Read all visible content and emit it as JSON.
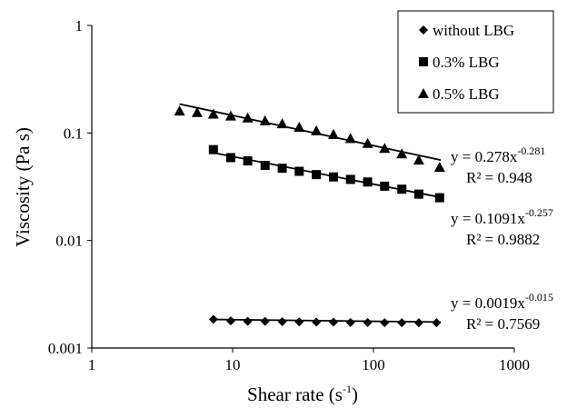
{
  "chart_data": {
    "type": "scatter",
    "xlabel": "Shear rate (s",
    "xlabel_sup": "-1",
    "xlabel_end": ")",
    "ylabel": "Viscosity (Pa s)",
    "x_scale": "log",
    "y_scale": "log",
    "xlim": [
      1,
      1000
    ],
    "ylim": [
      0.001,
      1
    ],
    "x_ticks": [
      {
        "value": 1,
        "label": "1"
      },
      {
        "value": 10,
        "label": "10"
      },
      {
        "value": 100,
        "label": "100"
      },
      {
        "value": 1000,
        "label": "1000"
      }
    ],
    "y_ticks": [
      {
        "value": 0.001,
        "label": "0.001"
      },
      {
        "value": 0.01,
        "label": "0.01"
      },
      {
        "value": 0.1,
        "label": "0.1"
      },
      {
        "value": 1,
        "label": "1"
      }
    ],
    "grid": false,
    "legend_position": "top-right",
    "series": [
      {
        "name": "without LBG",
        "marker": "diamond",
        "color": "#000000",
        "x": [
          7.3,
          9.7,
          12.8,
          17,
          22.5,
          29.7,
          39.3,
          52,
          68.7,
          90.9,
          120,
          159,
          210,
          280
        ],
        "y": [
          0.00185,
          0.00179,
          0.00177,
          0.00177,
          0.00176,
          0.00175,
          0.00174,
          0.00174,
          0.00173,
          0.00173,
          0.00172,
          0.00172,
          0.00172,
          0.00172
        ],
        "fit": {
          "a": 0.0019,
          "b": -0.015,
          "x_range": [
            7.3,
            300
          ],
          "eq_prefix": "y = 0.0019x",
          "eq_exp": "-0.015",
          "r2_label": "R² = 0.7569"
        }
      },
      {
        "name": "0.3% LBG",
        "marker": "square",
        "color": "#000000",
        "x": [
          7.3,
          9.7,
          12.8,
          17,
          22.5,
          29.7,
          39.3,
          52,
          68.7,
          90.9,
          120,
          159,
          210,
          295
        ],
        "y": [
          0.07,
          0.059,
          0.055,
          0.05,
          0.047,
          0.044,
          0.041,
          0.039,
          0.037,
          0.035,
          0.032,
          0.03,
          0.027,
          0.025
        ],
        "fit": {
          "a": 0.1091,
          "b": -0.257,
          "x_range": [
            7.3,
            300
          ],
          "eq_prefix": "y = 0.1091x",
          "eq_exp": "-0.257",
          "r2_label": "R² = 0.9882"
        }
      },
      {
        "name": "0.5% LBG",
        "marker": "triangle",
        "color": "#000000",
        "x": [
          4.2,
          5.6,
          7.3,
          9.7,
          12.8,
          17,
          22.5,
          29.7,
          39.3,
          52,
          68.7,
          90.9,
          120,
          159,
          210,
          295
        ],
        "y": [
          0.16,
          0.155,
          0.15,
          0.144,
          0.138,
          0.13,
          0.122,
          0.113,
          0.105,
          0.097,
          0.089,
          0.08,
          0.072,
          0.064,
          0.056,
          0.048
        ],
        "fit": {
          "a": 0.278,
          "b": -0.281,
          "x_range": [
            4.2,
            300
          ],
          "eq_prefix": "y = 0.278x",
          "eq_exp": "-0.281",
          "r2_label": "R² = 0.948"
        }
      }
    ]
  }
}
